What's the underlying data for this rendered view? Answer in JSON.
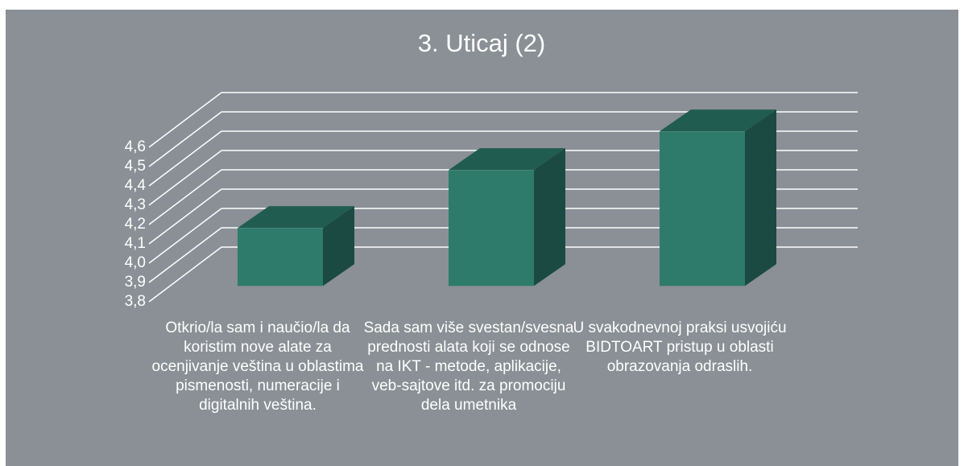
{
  "chart_data": {
    "type": "bar3d",
    "title": "3. Uticaj (2)",
    "categories": [
      "Otkrio/la sam i naučio/la da koristim nove alate za ocenjivanje veština u oblastima pismenosti, numeracije i digitalnih veština.",
      "Sada sam više svestan/svesna prednosti alata koji se odnose na IKT - metode, aplikacije, veb-sajtove itd. za promociju dela umetnika",
      "U svakodnevnoj praksi usvojiću BIDTOART pristup u oblasti obrazovanja odraslih."
    ],
    "values": [
      4.1,
      4.4,
      4.6
    ],
    "color": "#2e7b6c",
    "ylim": [
      3.8,
      4.6
    ],
    "yticks": [
      {
        "value": 3.8,
        "label": "3,8"
      },
      {
        "value": 3.9,
        "label": "3,9"
      },
      {
        "value": 4.0,
        "label": "4,0"
      },
      {
        "value": 4.1,
        "label": "4,1"
      },
      {
        "value": 4.2,
        "label": "4,2"
      },
      {
        "value": 4.3,
        "label": "4,3"
      },
      {
        "value": 4.4,
        "label": "4,4"
      },
      {
        "value": 4.5,
        "label": "4,5"
      },
      {
        "value": 4.6,
        "label": "4,6"
      }
    ],
    "grid": true
  }
}
